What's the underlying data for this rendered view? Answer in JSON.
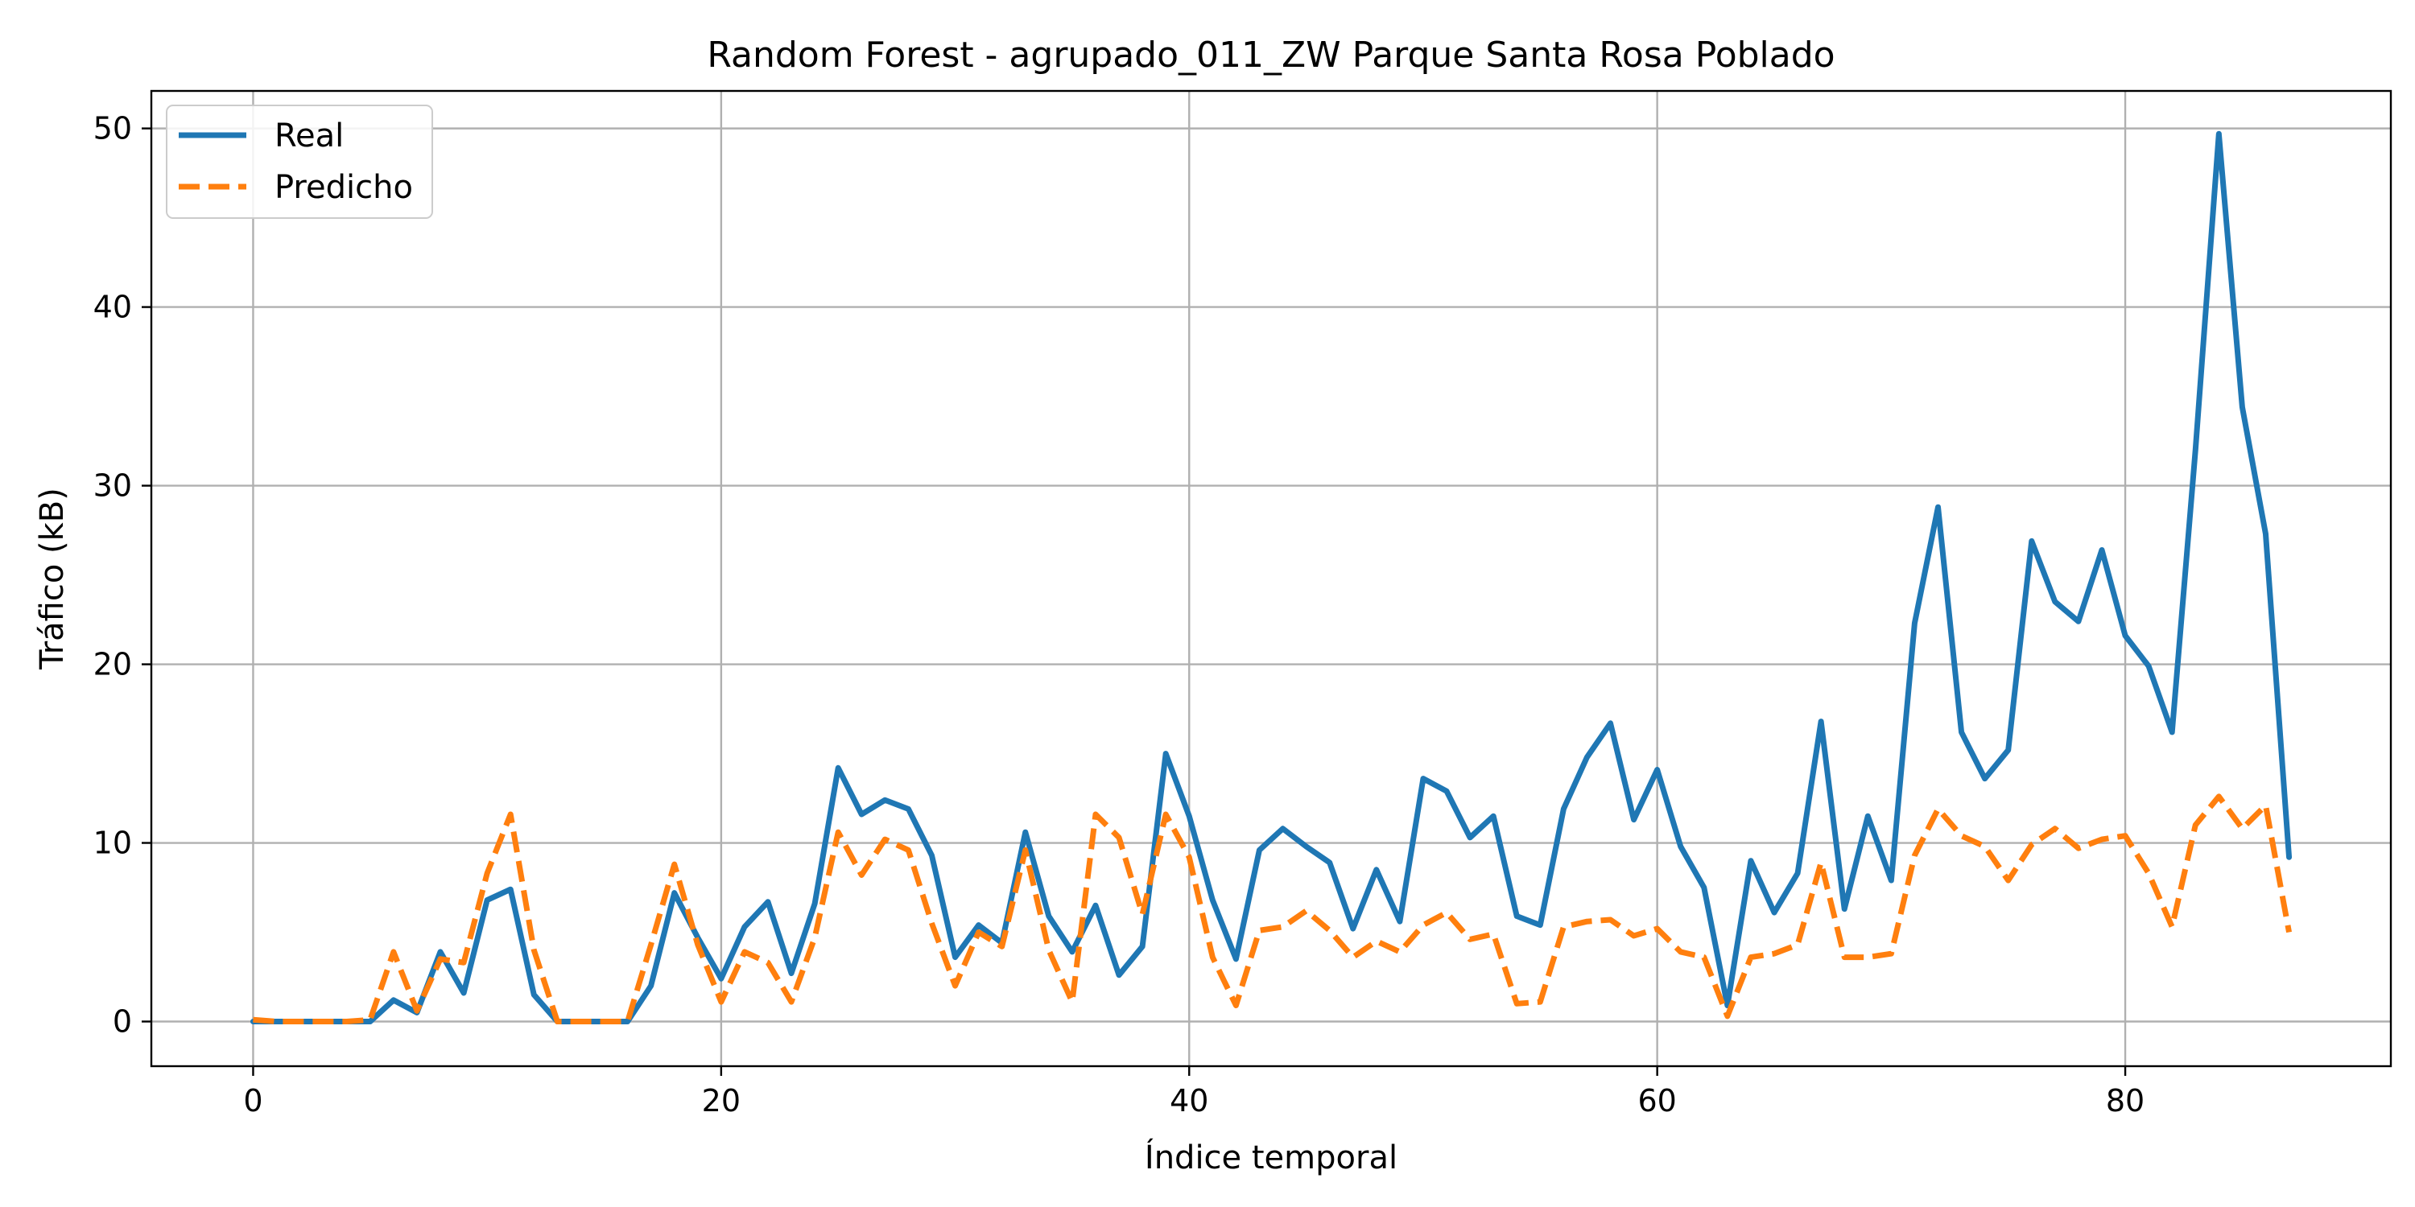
{
  "chart_data": {
    "type": "line",
    "title": "Random Forest - agrupado_011_ZW Parque Santa Rosa Poblado",
    "xlabel": "Índice temporal",
    "ylabel": "Tráfico (kB)",
    "xlim": [
      -4.35,
      91.35
    ],
    "ylim": [
      -2.5,
      52.1
    ],
    "xticks": [
      0,
      20,
      40,
      60,
      80
    ],
    "yticks": [
      0,
      10,
      20,
      30,
      40,
      50
    ],
    "grid": true,
    "legend_position": "upper-left",
    "x": [
      0,
      1,
      2,
      3,
      4,
      5,
      6,
      7,
      8,
      9,
      10,
      11,
      12,
      13,
      14,
      15,
      16,
      17,
      18,
      19,
      20,
      21,
      22,
      23,
      24,
      25,
      26,
      27,
      28,
      29,
      30,
      31,
      32,
      33,
      34,
      35,
      36,
      37,
      38,
      39,
      40,
      41,
      42,
      43,
      44,
      45,
      46,
      47,
      48,
      49,
      50,
      51,
      52,
      53,
      54,
      55,
      56,
      57,
      58,
      59,
      60,
      61,
      62,
      63,
      64,
      65,
      66,
      67,
      68,
      69,
      70,
      71,
      72,
      73,
      74,
      75,
      76,
      77,
      78,
      79,
      80,
      81,
      82,
      83,
      84,
      85,
      86,
      87
    ],
    "series": [
      {
        "name": "Real",
        "color": "#1f77b4",
        "style": "solid",
        "values": [
          0,
          0,
          0,
          0,
          0,
          0,
          1.2,
          0.5,
          3.9,
          1.6,
          6.8,
          7.4,
          1.5,
          0,
          0,
          0,
          0,
          2,
          7.2,
          4.7,
          2.4,
          5.3,
          6.7,
          2.7,
          6.6,
          14.2,
          11.6,
          12.4,
          11.9,
          9.3,
          3.6,
          5.4,
          4.4,
          10.6,
          5.9,
          3.9,
          6.5,
          2.6,
          4.2,
          15,
          11.5,
          6.8,
          3.5,
          9.6,
          10.8,
          9.8,
          8.9,
          5.2,
          8.5,
          5.6,
          13.6,
          12.9,
          10.3,
          11.5,
          5.9,
          5.4,
          11.9,
          14.8,
          16.7,
          11.3,
          14.1,
          9.8,
          7.5,
          0.9,
          9,
          6.1,
          8.3,
          16.8,
          6.3,
          11.5,
          7.9,
          22.3,
          28.8,
          16.2,
          13.6,
          15.2,
          26.9,
          23.5,
          22.4,
          26.4,
          21.6,
          19.9,
          16.2,
          32,
          49.7,
          34.4,
          27.3,
          9.2
        ]
      },
      {
        "name": "Predicho",
        "color": "#ff7f0e",
        "style": "dashed",
        "values": [
          0.1,
          0,
          0,
          0,
          0,
          0.1,
          3.9,
          0.6,
          3.5,
          3.3,
          8.3,
          11.6,
          4,
          0,
          0,
          0,
          0,
          4.3,
          8.8,
          4.3,
          1.1,
          3.9,
          3.3,
          1.1,
          4.7,
          10.6,
          8.2,
          10.2,
          9.6,
          5.5,
          2,
          5,
          4.2,
          9.6,
          4,
          1.1,
          11.6,
          10.3,
          6,
          11.6,
          9.2,
          3.6,
          0.9,
          5.1,
          5.3,
          6.2,
          5.1,
          3.6,
          4.5,
          3.9,
          5.4,
          6.1,
          4.6,
          4.9,
          1,
          1.1,
          5.3,
          5.6,
          5.7,
          4.8,
          5.2,
          3.9,
          3.6,
          0.3,
          3.6,
          3.8,
          4.3,
          8.9,
          3.6,
          3.6,
          3.8,
          9.3,
          11.9,
          10.4,
          9.8,
          7.9,
          9.9,
          10.8,
          9.7,
          10.2,
          10.4,
          8.3,
          5.3,
          11,
          12.6,
          10.8,
          12.1,
          5
        ]
      }
    ]
  }
}
